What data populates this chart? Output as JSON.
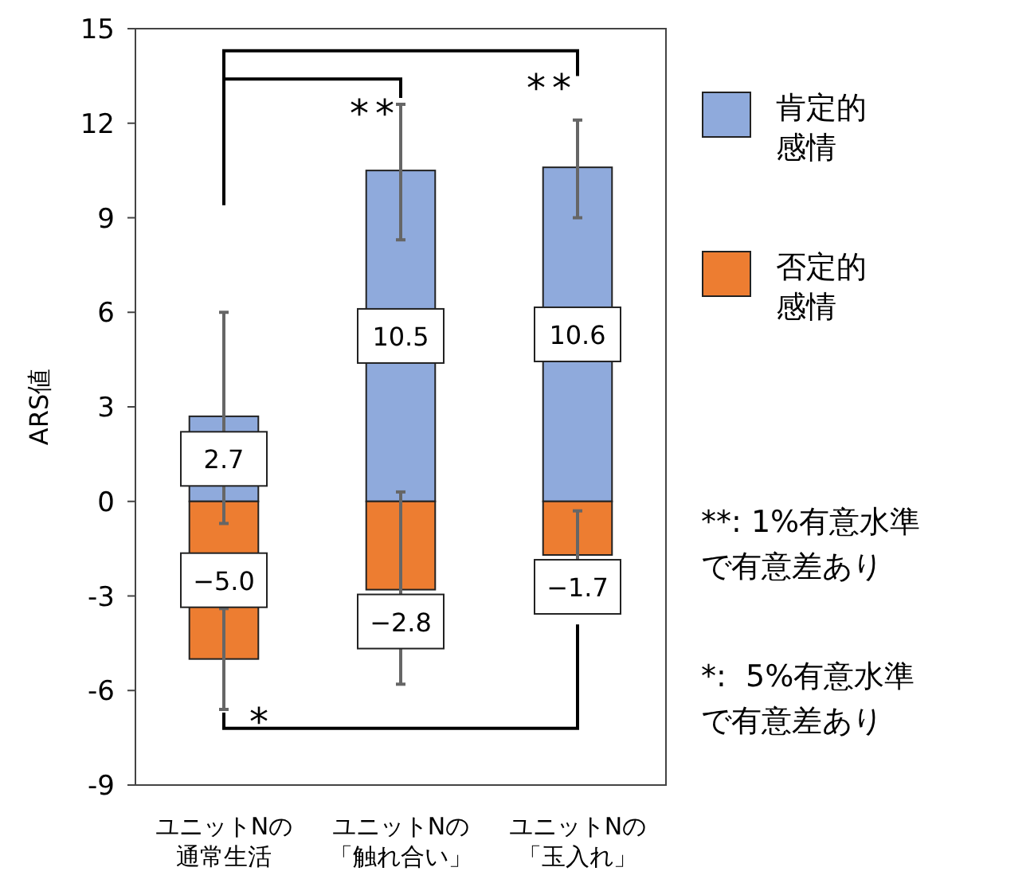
{
  "chart_data": {
    "type": "bar",
    "stacked": true,
    "ylabel": "ARS値",
    "categories": [
      "ユニットNの通常生活",
      "ユニットNの「触れ合い」",
      "ユニットNの「玉入れ」"
    ],
    "series": [
      {
        "name": "肯定的感情",
        "color": "#8faadc",
        "values": [
          2.7,
          10.5,
          10.6
        ],
        "value_labels": [
          "2.7",
          "10.5",
          "10.6"
        ],
        "errors": [
          [
            -0.7,
            6.0
          ],
          [
            8.3,
            12.6
          ],
          [
            9.0,
            12.1
          ]
        ]
      },
      {
        "name": "否定的感情",
        "color": "#ed7d31",
        "values": [
          -5.0,
          -2.8,
          -1.7
        ],
        "value_labels": [
          "−5.0",
          "−2.8",
          "−1.7"
        ],
        "errors": [
          [
            -6.6,
            -3.4
          ],
          [
            -5.8,
            0.3
          ],
          [
            -3.1,
            -0.3
          ]
        ]
      }
    ],
    "ylim": [
      -9,
      15
    ],
    "yticks": [
      -9,
      -6,
      -3,
      0,
      3,
      6,
      9,
      12,
      15
    ],
    "legend": "right",
    "annotations": [
      "**",
      "**",
      "*",
      "**: 1%有意水準で有意差あり",
      "*:  5%有意水準で有意差あり"
    ]
  }
}
